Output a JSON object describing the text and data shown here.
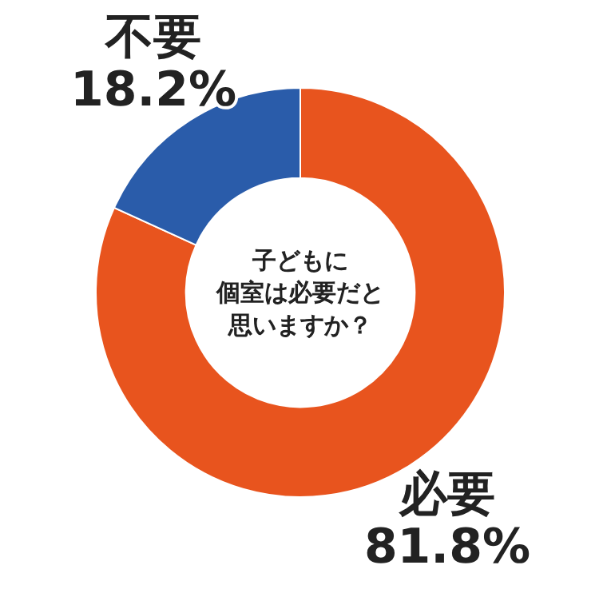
{
  "chart_data": {
    "type": "donut",
    "title": "子どもに個室は必要だと思いますか？",
    "categories": [
      "必要",
      "不要"
    ],
    "values": [
      81.8,
      18.2
    ],
    "colors": [
      "#e8541e",
      "#2a5caa"
    ],
    "value_labels": [
      "81.8%",
      "18.2%"
    ]
  }
}
